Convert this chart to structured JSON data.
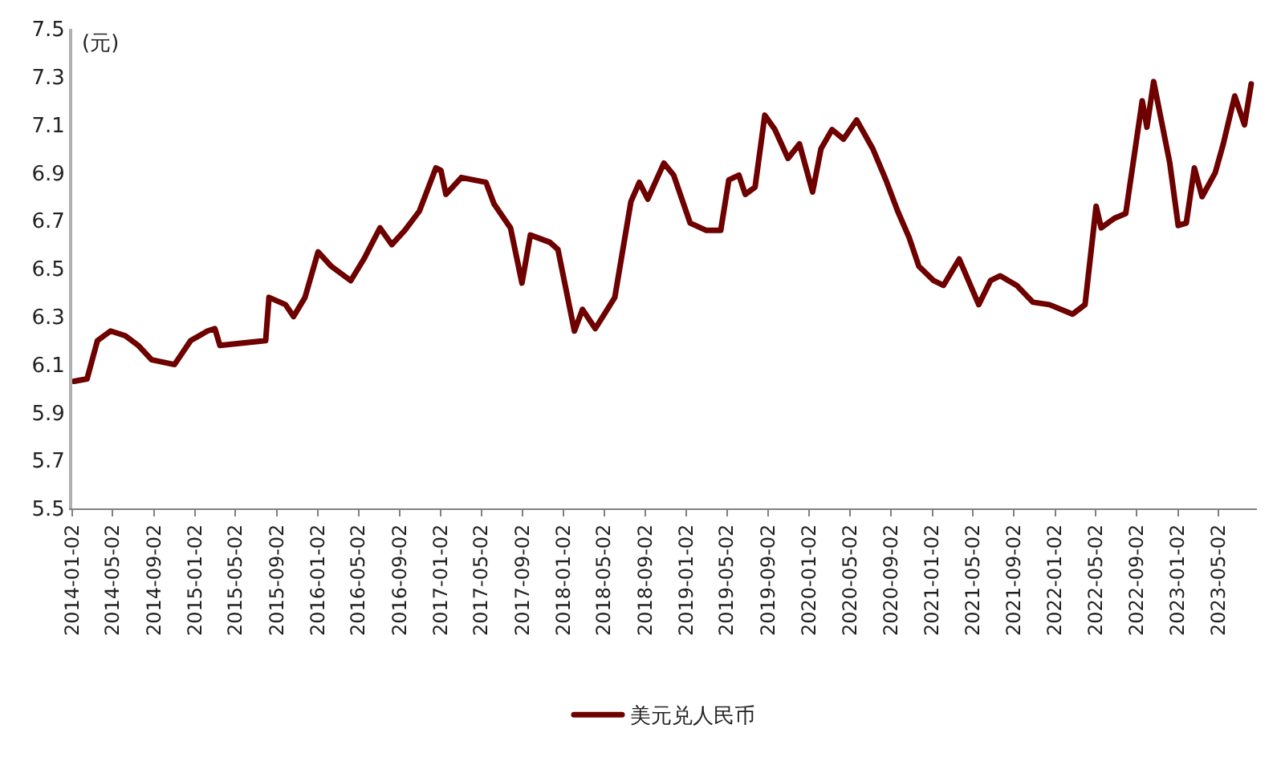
{
  "chart_data": {
    "type": "line",
    "ylabel": "(元)",
    "x": [
      "2014-01-07",
      "2014-02-15",
      "2014-03-18",
      "2014-04-26",
      "2014-06-09",
      "2014-07-17",
      "2014-08-26",
      "2014-11-02",
      "2014-12-20",
      "2015-02-08",
      "2015-03-02",
      "2015-03-17",
      "2015-07-31",
      "2015-08-10",
      "2015-09-28",
      "2015-10-22",
      "2015-11-25",
      "2016-01-03",
      "2016-02-11",
      "2016-04-09",
      "2016-05-18",
      "2016-07-05",
      "2016-08-09",
      "2016-09-17",
      "2016-10-30",
      "2016-12-18",
      "2017-01-02",
      "2017-01-17",
      "2017-03-04",
      "2017-05-16",
      "2017-06-09",
      "2017-07-28",
      "2017-08-31",
      "2017-09-25",
      "2017-11-22",
      "2017-12-16",
      "2018-02-03",
      "2018-02-27",
      "2018-04-06",
      "2018-06-03",
      "2018-07-21",
      "2018-08-15",
      "2018-09-09",
      "2018-10-27",
      "2018-11-25",
      "2019-01-13",
      "2019-03-01",
      "2019-04-14",
      "2019-05-08",
      "2019-06-07",
      "2019-06-26",
      "2019-07-25",
      "2019-08-23",
      "2019-09-22",
      "2019-10-31",
      "2019-12-04",
      "2020-01-12",
      "2020-02-06",
      "2020-03-10",
      "2020-04-13",
      "2020-05-22",
      "2020-07-09",
      "2020-08-17",
      "2020-09-21",
      "2020-10-25",
      "2020-11-23",
      "2021-01-06",
      "2021-02-04",
      "2021-03-23",
      "2021-05-20",
      "2021-06-24",
      "2021-07-23",
      "2021-09-10",
      "2021-10-28",
      "2021-12-16",
      "2022-02-23",
      "2022-04-01",
      "2022-05-04",
      "2022-05-19",
      "2022-06-27",
      "2022-07-31",
      "2022-09-18",
      "2022-10-02",
      "2022-10-22",
      "2022-11-15",
      "2022-12-09",
      "2023-01-03",
      "2023-01-27",
      "2023-02-20",
      "2023-03-15",
      "2023-04-23",
      "2023-05-17",
      "2023-06-20",
      "2023-07-19",
      "2023-08-08"
    ],
    "series": [
      {
        "name": "美元兑人民币",
        "color": "#6e0000",
        "values": [
          6.03,
          6.04,
          6.2,
          6.24,
          6.22,
          6.18,
          6.12,
          6.1,
          6.2,
          6.24,
          6.25,
          6.18,
          6.2,
          6.38,
          6.35,
          6.3,
          6.38,
          6.57,
          6.51,
          6.45,
          6.54,
          6.67,
          6.6,
          6.66,
          6.74,
          6.92,
          6.91,
          6.81,
          6.88,
          6.86,
          6.77,
          6.67,
          6.44,
          6.64,
          6.61,
          6.58,
          6.24,
          6.33,
          6.25,
          6.38,
          6.78,
          6.86,
          6.79,
          6.94,
          6.89,
          6.69,
          6.66,
          6.66,
          6.87,
          6.89,
          6.81,
          6.84,
          7.14,
          7.08,
          6.96,
          7.02,
          6.82,
          7.0,
          7.08,
          7.04,
          7.12,
          7.0,
          6.87,
          6.74,
          6.63,
          6.51,
          6.45,
          6.43,
          6.54,
          6.35,
          6.45,
          6.47,
          6.43,
          6.36,
          6.35,
          6.31,
          6.35,
          6.76,
          6.67,
          6.71,
          6.73,
          7.2,
          7.09,
          7.28,
          7.11,
          6.94,
          6.68,
          6.69,
          6.92,
          6.8,
          6.9,
          7.02,
          7.22,
          7.1,
          7.27
        ]
      }
    ],
    "xlim": [
      "2014-01-02",
      "2023-08-25"
    ],
    "xticks": [
      "2014-01-02",
      "2014-05-02",
      "2014-09-02",
      "2015-01-02",
      "2015-05-02",
      "2015-09-02",
      "2016-01-02",
      "2016-05-02",
      "2016-09-02",
      "2017-01-02",
      "2017-05-02",
      "2017-09-02",
      "2018-01-02",
      "2018-05-02",
      "2018-09-02",
      "2019-01-02",
      "2019-05-02",
      "2019-09-02",
      "2020-01-02",
      "2020-05-02",
      "2020-09-02",
      "2021-01-02",
      "2021-05-02",
      "2021-09-02",
      "2022-01-02",
      "2022-05-02",
      "2022-09-02",
      "2023-01-02",
      "2023-05-02"
    ],
    "ylim": [
      5.5,
      7.5
    ],
    "yticks": [
      5.5,
      5.7,
      5.9,
      6.1,
      6.3,
      6.5,
      6.7,
      6.9,
      7.1,
      7.3,
      7.5
    ],
    "legend": "bottom",
    "marker": "none",
    "line_style": "solid"
  }
}
